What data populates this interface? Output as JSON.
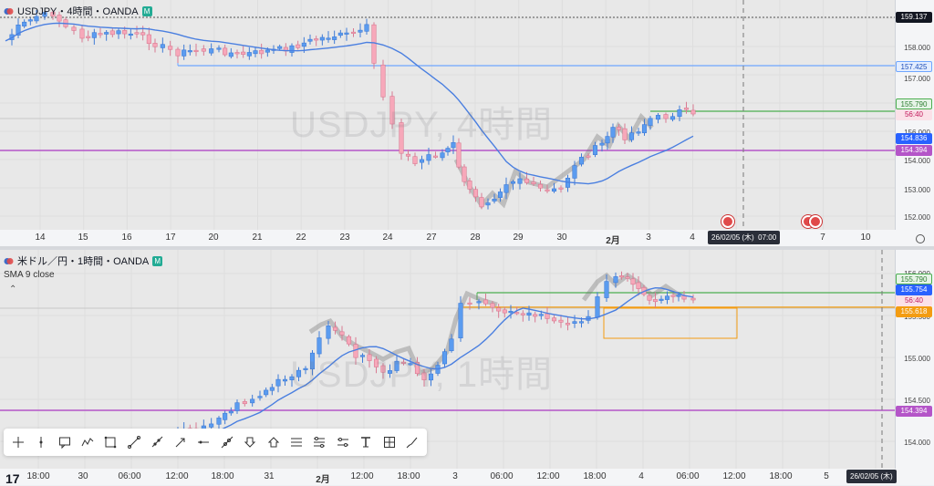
{
  "top_pane": {
    "title": "USDJPY・4時間・OANDA",
    "flag_text": "M",
    "watermark": "USDJPY, 4時間",
    "price_labels": [
      {
        "text": "159.137",
        "kind": "dark"
      },
      {
        "text": "157.425",
        "kind": "blue"
      },
      {
        "text": "155.790",
        "kind": "green"
      },
      {
        "text": "56:40",
        "kind": "pink"
      },
      {
        "text": "154.836",
        "kind": "blue-solid"
      },
      {
        "text": "154.394",
        "kind": "purple"
      }
    ],
    "price_ticks": [
      "158.000",
      "157.000",
      "156.000",
      "155.000",
      "154.000",
      "153.000",
      "152.000"
    ],
    "time_labels": [
      "14",
      "15",
      "16",
      "17",
      "20",
      "21",
      "22",
      "23",
      "24",
      "27",
      "28",
      "29",
      "30",
      "2月",
      "3",
      "4",
      "7",
      "10"
    ],
    "crosshair_time": "26/02/05 (木)",
    "crosshair_clock": "07:00"
  },
  "bottom_pane": {
    "title": "米ドル／円・1時間・OANDA",
    "flag_text": "M",
    "indicator": "SMA 9 close",
    "watermark": "USDJPY, 1時間",
    "price_labels": [
      {
        "text": "155.790",
        "kind": "green"
      },
      {
        "text": "155.754",
        "kind": "blue-solid"
      },
      {
        "text": "56:40",
        "kind": "pink"
      },
      {
        "text": "155.618",
        "kind": "orange"
      },
      {
        "text": "154.394",
        "kind": "purple"
      }
    ],
    "price_ticks": [
      "156.000",
      "155.500",
      "155.000",
      "154.500",
      "154.000"
    ],
    "time_labels": [
      "18:00",
      "30",
      "06:00",
      "12:00",
      "18:00",
      "31",
      "2月",
      "12:00",
      "18:00",
      "3",
      "06:00",
      "12:00",
      "18:00",
      "4",
      "06:00",
      "12:00",
      "18:00",
      "5"
    ],
    "crosshair_time": "26/02/05 (木)"
  },
  "toolbar": {
    "tools": [
      "crosshair-icon",
      "cursor-icon",
      "callout-icon",
      "path-icon",
      "rectangle-icon",
      "trendline-icon",
      "ray-icon",
      "arrow-icon",
      "horizontal-ray-icon",
      "extended-line-icon",
      "arrow-down-icon",
      "arrow-up-icon",
      "horizontal-lines-icon",
      "fib-retracement-icon",
      "parallel-channel-icon",
      "text-icon",
      "measure-icon",
      "brush-icon"
    ]
  },
  "colors": {
    "up": "#5b9cf0",
    "down": "#f7a8ba",
    "sma": "#4a7fe0",
    "green_line": "#4caf50",
    "blue_line": "#6ea6ff",
    "purple_line": "#b455c8",
    "orange_line": "#f39c12"
  },
  "branding": {
    "logo": "17"
  }
}
